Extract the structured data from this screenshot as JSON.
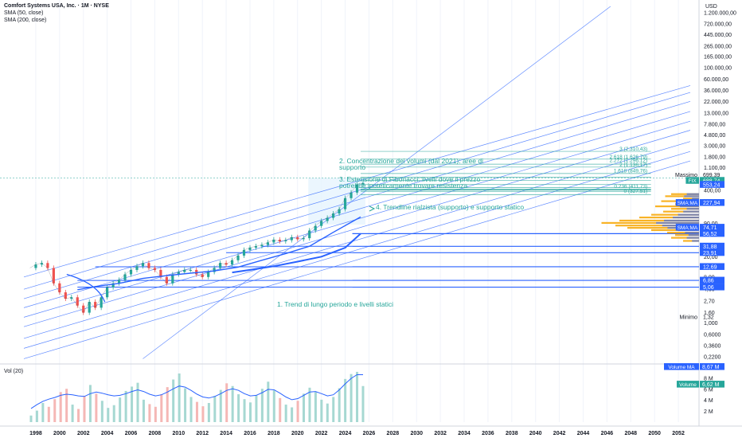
{
  "header": {
    "symbol_title": "Comfort Systems USA, Inc. · 1M · NYSE",
    "indicator_1": "SMA (50, close)",
    "indicator_2": "SMA (200, close)",
    "volume_indicator": "Vol (20)"
  },
  "chart_data": {
    "type": "line",
    "title": "Comfort Systems USA, Inc. · 1M · NYSE",
    "currency": "USD",
    "y_scale": "log",
    "ylim": [
      0.2,
      1200000
    ],
    "x_tick_labels": [
      "1998",
      "2000",
      "2002",
      "2004",
      "2006",
      "2008",
      "2010",
      "2012",
      "2014",
      "2016",
      "2018",
      "2020",
      "2022",
      "2024",
      "2026",
      "2028",
      "2030",
      "2032",
      "2034",
      "2036",
      "2038",
      "2040",
      "2042",
      "2044",
      "2046",
      "2048",
      "2050",
      "2052"
    ],
    "y_tick_labels": [
      "1.200.000,00",
      "720.000,00",
      "445.000,00",
      "265.000,00",
      "165.000,00",
      "100.000,00",
      "60.000,00",
      "36.000,00",
      "22.000,00",
      "13.000,00",
      "7.800,00",
      "4.800,00",
      "3.000,00",
      "1.800,00",
      "1.100,00",
      "400,00",
      "240,00",
      "90,00",
      "20,00",
      "8,00",
      "4,60",
      "2,70",
      "1,60",
      "1,000",
      "0,6000",
      "0,3600",
      "0,2200"
    ],
    "volume_tick_labels": [
      "8 M",
      "6 M",
      "4 M",
      "2 M"
    ],
    "price_series": {
      "name": "Close",
      "x": [
        1997.5,
        1998.0,
        1998.5,
        1999.0,
        1999.5,
        2000.0,
        2000.5,
        2001.0,
        2001.5,
        2002.0,
        2002.5,
        2003.0,
        2003.5,
        2004.0,
        2004.5,
        2005.0,
        2005.5,
        2006.0,
        2006.5,
        2007.0,
        2007.5,
        2008.0,
        2008.5,
        2009.0,
        2009.5,
        2010.0,
        2010.5,
        2011.0,
        2011.5,
        2012.0,
        2012.5,
        2013.0,
        2013.5,
        2014.0,
        2014.5,
        2015.0,
        2015.5,
        2016.0,
        2016.5,
        2017.0,
        2017.5,
        2018.0,
        2018.5,
        2019.0,
        2019.5,
        2020.0,
        2020.5,
        2021.0,
        2021.5,
        2022.0,
        2022.5,
        2023.0,
        2023.5,
        2024.0,
        2024.5,
        2025.0,
        2025.5
      ],
      "values": [
        12,
        14,
        15,
        12,
        6,
        4,
        3,
        3.2,
        2.2,
        1.6,
        2.6,
        2.0,
        3.2,
        5,
        6,
        7,
        9,
        11,
        13,
        15,
        12,
        11,
        8,
        6,
        9,
        10,
        11,
        11,
        9,
        8,
        10,
        12,
        15,
        14,
        17,
        21,
        27,
        30,
        32,
        34,
        38,
        43,
        40,
        42,
        48,
        44,
        46,
        65,
        80,
        100,
        115,
        140,
        170,
        280,
        360,
        520,
        553.24
      ]
    },
    "sma_50": {
      "name": "SMA (50, close)",
      "x": [
        2001.5,
        2003,
        2005,
        2007,
        2009,
        2011,
        2013,
        2015,
        2017,
        2019,
        2021,
        2023,
        2025.3
      ],
      "values": [
        4.5,
        5.2,
        6,
        7.5,
        8.5,
        9.5,
        10.5,
        12.5,
        17,
        23,
        32,
        60,
        120
      ]
    },
    "sma_200": {
      "name": "SMA (200, close)",
      "x": [
        2014.5,
        2016,
        2018,
        2020,
        2022,
        2024,
        2025.3
      ],
      "values": [
        9.8,
        11,
        13,
        16,
        20,
        30,
        56.52
      ]
    },
    "volume": {
      "ma_label": "Volume MA",
      "ma_value": "8,67 M",
      "label": "Volume",
      "value": "6,62 M",
      "bars_millions": [
        1.2,
        2.1,
        3.5,
        2.8,
        4.2,
        5.5,
        6.1,
        3.2,
        2.4,
        4.8,
        6.8,
        5.2,
        3.9,
        2.6,
        3.1,
        4.5,
        5.7,
        6.5,
        7.2,
        4.1,
        3.3,
        2.8,
        5.1,
        6.4,
        7.8,
        8.9,
        6.2,
        4.6,
        3.7,
        2.9,
        3.5,
        4.8,
        5.9,
        7.1,
        6.6,
        5.1,
        4.2,
        3.6,
        4.9,
        6.1,
        7.4,
        5.8,
        4.4,
        3.2,
        2.7,
        3.9,
        5.2,
        6.3,
        5.5,
        4.1,
        3.4,
        4.6,
        6.2,
        7.9,
        8.8,
        9.2,
        6.6
      ],
      "ma_millions": [
        2.5,
        3.2,
        3.8,
        4.2,
        4.5,
        4.9,
        5.1,
        5.0,
        4.8,
        4.7,
        5.2,
        5.5,
        5.3,
        5.0,
        4.8,
        4.9,
        5.2,
        5.6,
        5.9,
        5.6,
        5.1,
        4.8,
        5.0,
        5.5,
        6.1,
        6.6,
        6.4,
        5.8,
        5.1,
        4.6,
        4.4,
        4.7,
        5.2,
        5.8,
        6.1,
        5.8,
        5.2,
        4.8,
        4.9,
        5.4,
        6.0,
        5.9,
        5.3,
        4.6,
        4.1,
        4.3,
        4.9,
        5.5,
        5.6,
        5.2,
        4.8,
        5.0,
        5.9,
        7.0,
        8.0,
        8.67,
        8.67
      ]
    },
    "right_labels": [
      {
        "text": "699,39",
        "color": "#131722",
        "bg": "#ffffff",
        "label_before": "Massimo"
      },
      {
        "text": "688,74",
        "color": "#ffffff",
        "bg": "#26a69a",
        "tag": "FIX"
      },
      {
        "text": "553,24",
        "color": "#ffffff",
        "bg": "#2962ff"
      },
      {
        "text": "227,94",
        "color": "#ffffff",
        "bg": "#2962ff",
        "tag": "SMA:MA"
      },
      {
        "text": "74,71",
        "color": "#ffffff",
        "bg": "#2962ff",
        "tag": "SMA:MA"
      },
      {
        "text": "56,52",
        "color": "#ffffff",
        "bg": "#2962ff"
      },
      {
        "text": "31,88",
        "color": "#ffffff",
        "bg": "#2962ff"
      },
      {
        "text": "23,91",
        "color": "#ffffff",
        "bg": "#2962ff"
      },
      {
        "text": "12,69",
        "color": "#ffffff",
        "bg": "#2962ff"
      },
      {
        "text": "6,86",
        "color": "#ffffff",
        "bg": "#2962ff"
      },
      {
        "text": "5,06",
        "color": "#ffffff",
        "bg": "#2962ff"
      },
      {
        "text": "1,32",
        "color": "#131722",
        "bg": "#ffffff",
        "label_before": "Minimo"
      }
    ],
    "horizontal_levels": [
      56.52,
      31.88,
      23.91,
      12.69,
      6.86,
      5.06
    ],
    "fibonacci_levels": [
      {
        "ratio": "3",
        "value": "(2.310,43)"
      },
      {
        "ratio": "2.618",
        "value": "(1.626,79)"
      },
      {
        "ratio": "2.272",
        "value": "(1.296,12)"
      },
      {
        "ratio": "2",
        "value": "(1.136,17)"
      },
      {
        "ratio": "1.618",
        "value": "(849,76)"
      },
      {
        "ratio": "1.414",
        "value": ""
      },
      {
        "ratio": "1.272",
        "value": ""
      },
      {
        "ratio": "1",
        "value": ""
      },
      {
        "ratio": "0.786",
        "value": ""
      },
      {
        "ratio": "0.618",
        "value": ""
      },
      {
        "ratio": "0.5",
        "value": ""
      },
      {
        "ratio": "0.382",
        "value": ""
      },
      {
        "ratio": "0.236",
        "value": "(411,73)"
      },
      {
        "ratio": "0",
        "value": "(327,51)"
      }
    ],
    "annotations": [
      "1. Trend di lungo periodo e livelli statici",
      "2. Concentrazione dei volumi (dal 2021): aree di supporto",
      "3. Estensione di Fibonacci: livelli dove il prezzo potrebbe ipoteticamente trovare resistenza",
      "4. Trendline rialzista (supporto) e supporto statico"
    ],
    "axis_unit": "USD",
    "colors": {
      "up": "#26a69a",
      "down": "#ef5350",
      "trendline": "#2962ff",
      "fib": "#26a69a",
      "volume_profile": "#f7a600",
      "volume_ma": "#2962ff",
      "grid": "#f0f3fa"
    }
  }
}
